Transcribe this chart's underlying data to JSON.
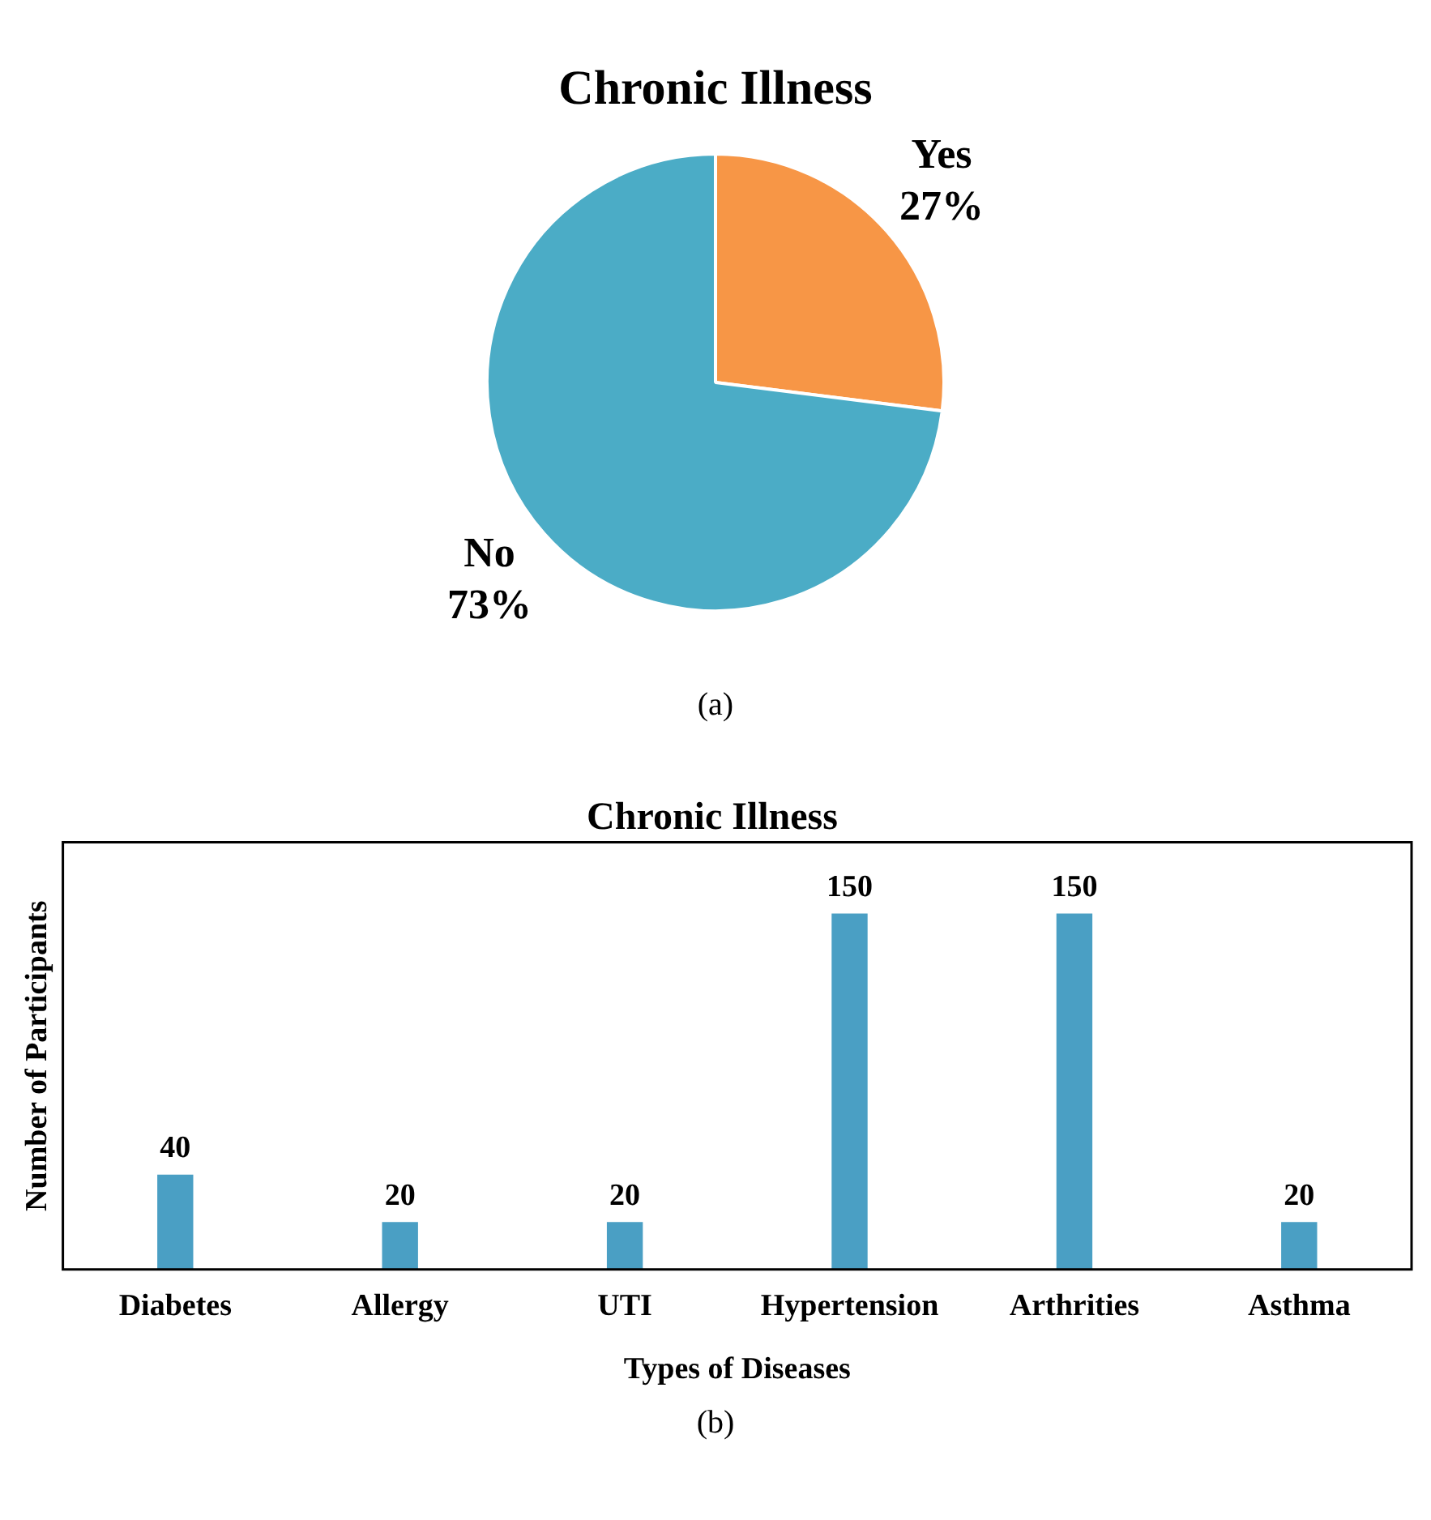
{
  "chart_data": [
    {
      "type": "pie",
      "title": "Chronic Illness",
      "categories": [
        "Yes",
        "No"
      ],
      "values": [
        27,
        73
      ],
      "colors": [
        "#f79646",
        "#4bacc6"
      ],
      "value_labels": [
        "27%",
        "73%"
      ],
      "legend": false,
      "annotations": [
        "(a)"
      ]
    },
    {
      "type": "bar",
      "title": "Chronic Illness",
      "xlabel": "Types of Diseases",
      "ylabel": "Number of Participants",
      "categories": [
        "Diabetes",
        "Allergy",
        "UTI",
        "Hypertension",
        "Arthrities",
        "Asthma"
      ],
      "values": [
        40,
        20,
        20,
        150,
        150,
        20
      ],
      "color": "#4a9fc4",
      "data_labels": true,
      "tick_labels": "x",
      "grid": false,
      "legend": false,
      "annotations": [
        "(b)"
      ]
    }
  ]
}
